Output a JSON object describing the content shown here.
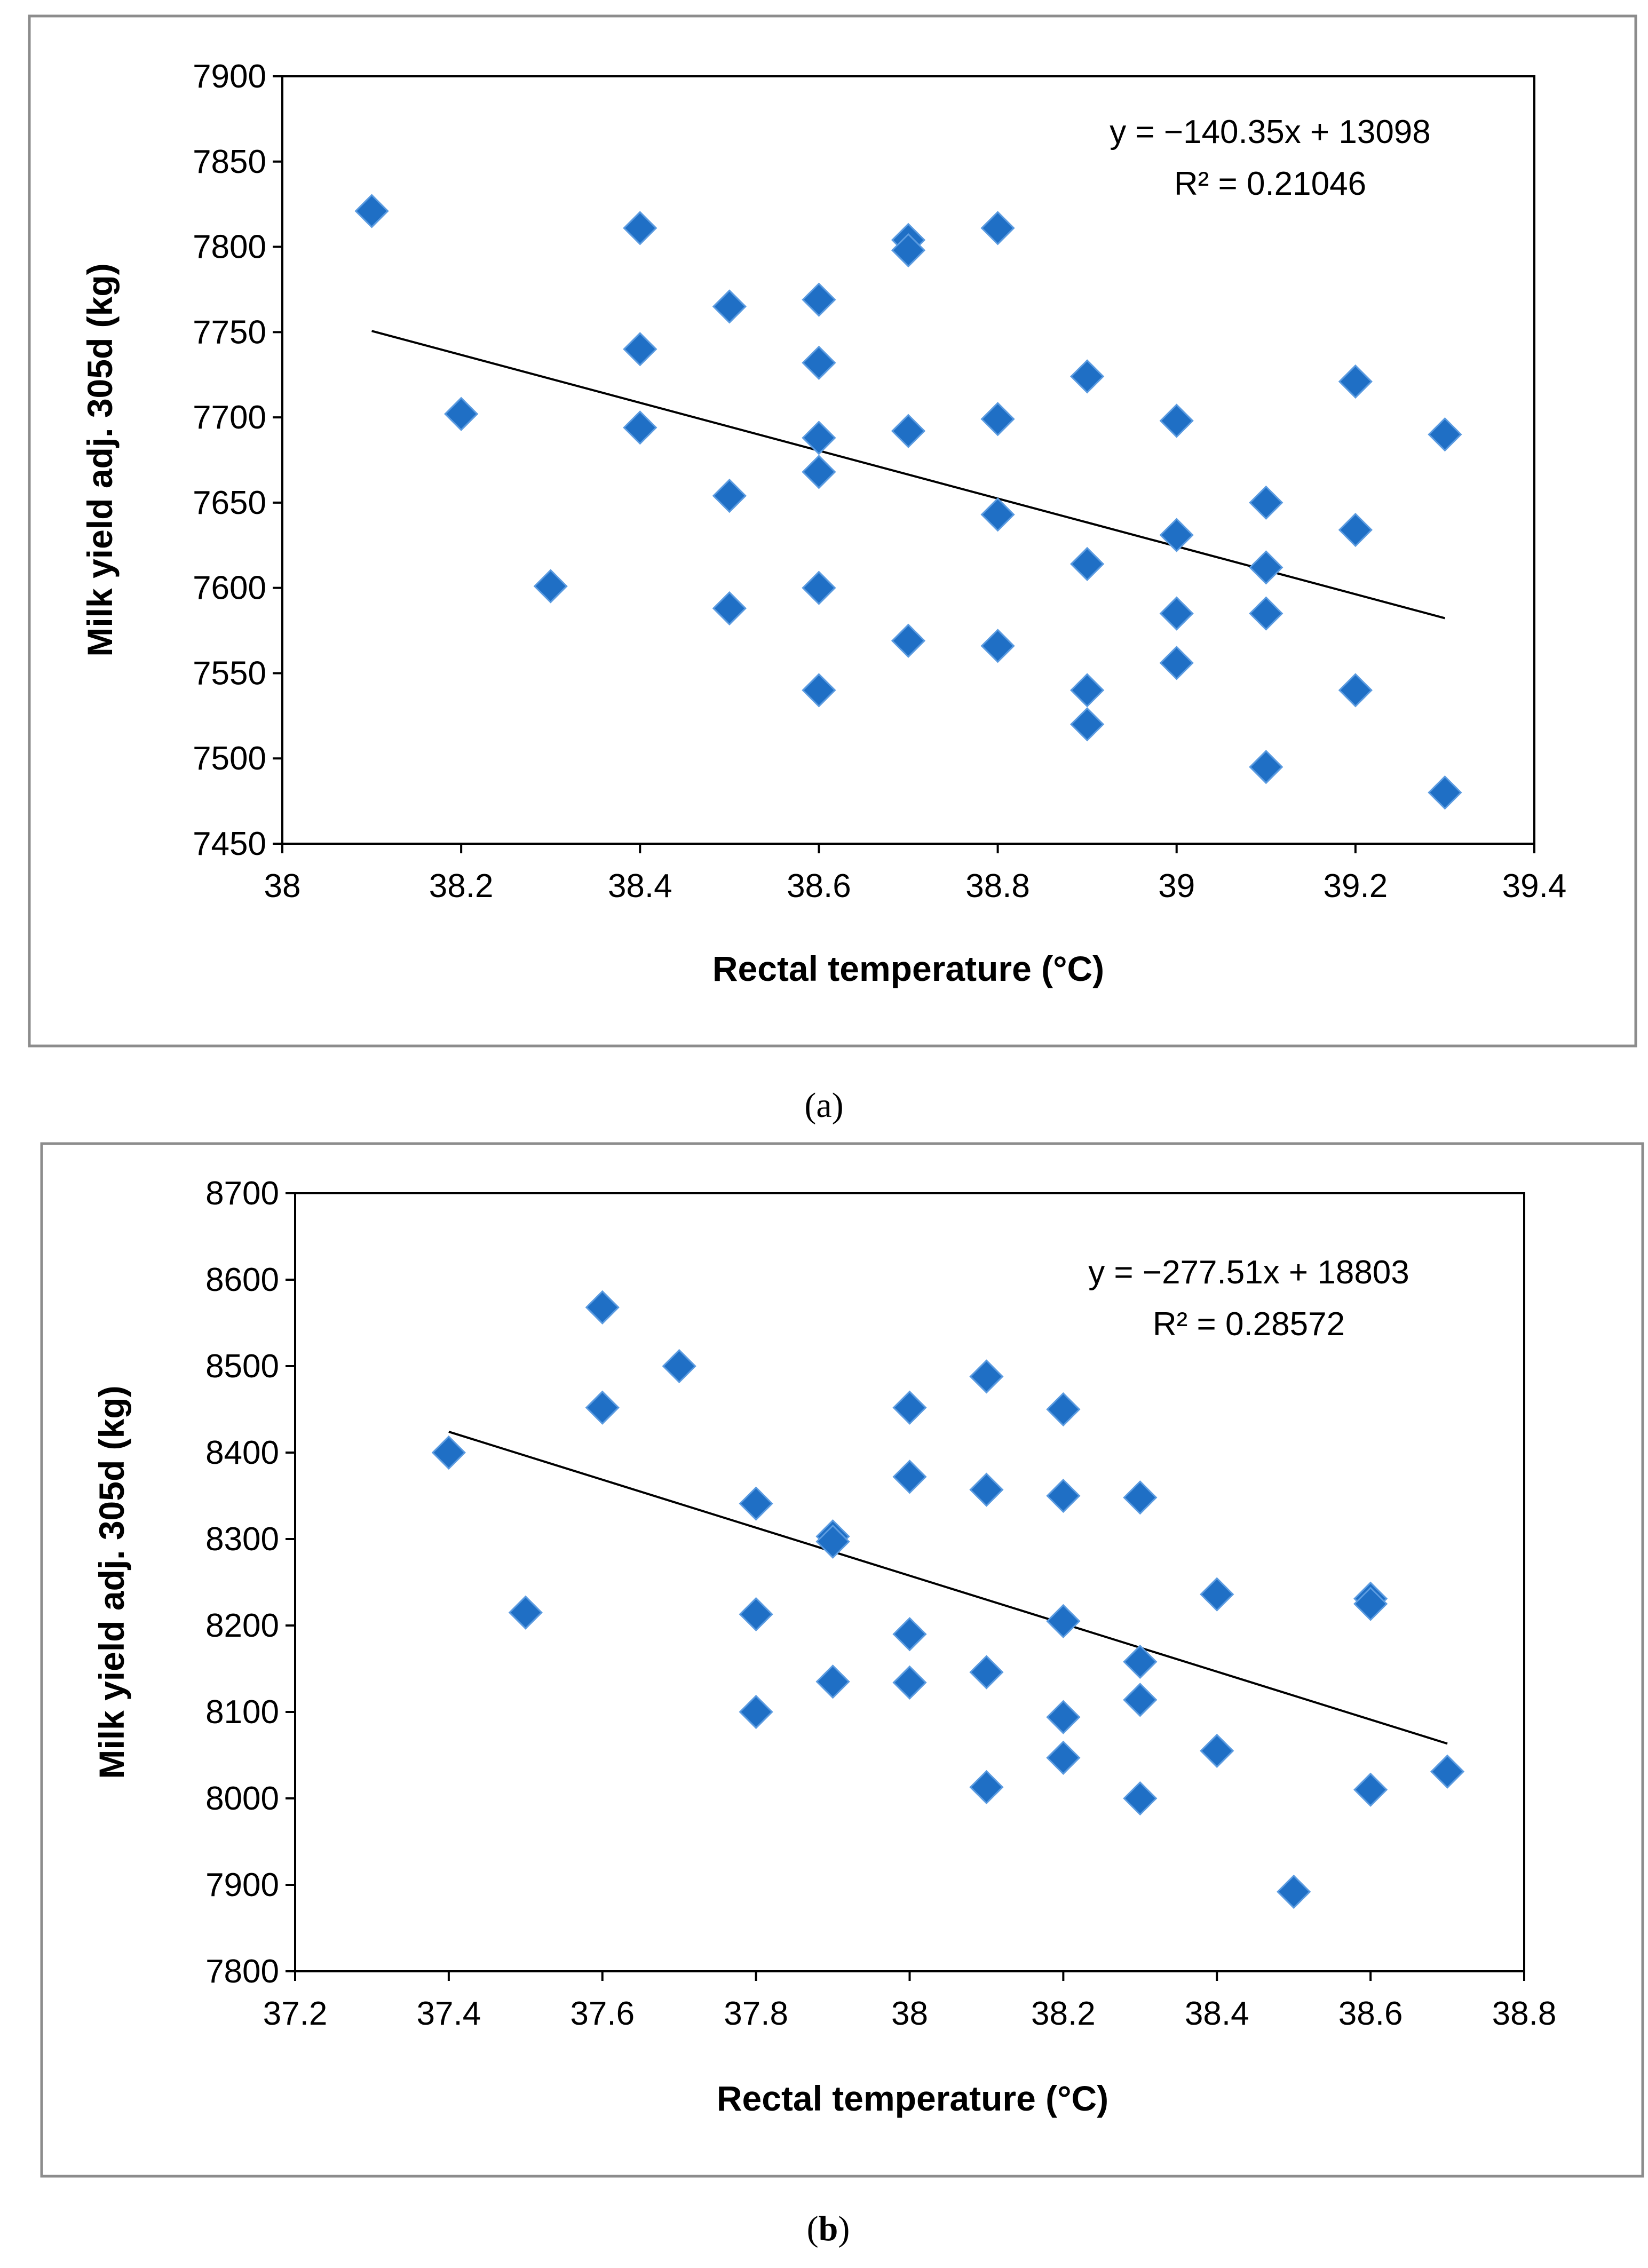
{
  "chart_data": [
    {
      "id": "a",
      "type": "scatter",
      "panel_label": "a",
      "xlabel": "Rectal temperature (°C)",
      "ylabel": "Milk yield adj. 305d (kg)",
      "xlim": [
        38,
        39.4
      ],
      "ylim": [
        7450,
        7900
      ],
      "xticks": [
        "38",
        "38.2",
        "38.4",
        "38.6",
        "38.8",
        "39",
        "39.2",
        "39.4"
      ],
      "yticks": [
        "7450",
        "7500",
        "7550",
        "7600",
        "7650",
        "7700",
        "7750",
        "7800",
        "7850",
        "7900"
      ],
      "equation": "y = −140.35x + 13098",
      "r_squared": "R² = 0.21046",
      "marker_color": "#1f6fc5",
      "trendline": {
        "slope": -140.35,
        "intercept": 13098,
        "x_start": 38.1,
        "x_end": 39.3
      },
      "points": [
        [
          38.1,
          7821
        ],
        [
          38.2,
          7702
        ],
        [
          38.3,
          7601
        ],
        [
          38.4,
          7811
        ],
        [
          38.4,
          7740
        ],
        [
          38.4,
          7694
        ],
        [
          38.5,
          7765
        ],
        [
          38.5,
          7654
        ],
        [
          38.5,
          7588
        ],
        [
          38.6,
          7769
        ],
        [
          38.6,
          7732
        ],
        [
          38.6,
          7688
        ],
        [
          38.6,
          7668
        ],
        [
          38.6,
          7600
        ],
        [
          38.6,
          7540
        ],
        [
          38.7,
          7804
        ],
        [
          38.7,
          7798
        ],
        [
          38.7,
          7692
        ],
        [
          38.7,
          7569
        ],
        [
          38.8,
          7811
        ],
        [
          38.8,
          7699
        ],
        [
          38.8,
          7643
        ],
        [
          38.8,
          7566
        ],
        [
          38.9,
          7724
        ],
        [
          38.9,
          7614
        ],
        [
          38.9,
          7540
        ],
        [
          38.9,
          7520
        ],
        [
          39.0,
          7698
        ],
        [
          39.0,
          7631
        ],
        [
          39.0,
          7585
        ],
        [
          39.0,
          7556
        ],
        [
          39.1,
          7650
        ],
        [
          39.1,
          7612
        ],
        [
          39.1,
          7585
        ],
        [
          39.1,
          7495
        ],
        [
          39.2,
          7721
        ],
        [
          39.2,
          7634
        ],
        [
          39.2,
          7540
        ],
        [
          39.3,
          7690
        ],
        [
          39.3,
          7480
        ]
      ]
    },
    {
      "id": "b",
      "type": "scatter",
      "panel_label": "b",
      "xlabel": "Rectal temperature (°C)",
      "ylabel": "Milk yield adj. 305d (kg)",
      "xlim": [
        37.2,
        38.8
      ],
      "ylim": [
        7800,
        8700
      ],
      "xticks": [
        "37.2",
        "37.4",
        "37.6",
        "37.8",
        "38",
        "38.2",
        "38.4",
        "38.6",
        "38.8"
      ],
      "yticks": [
        "7800",
        "7900",
        "8000",
        "8100",
        "8200",
        "8300",
        "8400",
        "8500",
        "8600",
        "8700"
      ],
      "equation": "y = −277.51x + 18803",
      "r_squared": "R² = 0.28572",
      "marker_color": "#1f6fc5",
      "trendline": {
        "slope": -277.51,
        "intercept": 18803,
        "x_start": 37.4,
        "x_end": 38.7
      },
      "points": [
        [
          37.4,
          8400
        ],
        [
          37.5,
          8215
        ],
        [
          37.6,
          8568
        ],
        [
          37.6,
          8452
        ],
        [
          37.7,
          8500
        ],
        [
          37.8,
          8341
        ],
        [
          37.8,
          8213
        ],
        [
          37.8,
          8100
        ],
        [
          37.9,
          8303
        ],
        [
          37.9,
          8297
        ],
        [
          37.9,
          8135
        ],
        [
          38.0,
          8452
        ],
        [
          38.0,
          8372
        ],
        [
          38.0,
          8190
        ],
        [
          38.0,
          8134
        ],
        [
          38.1,
          8488
        ],
        [
          38.1,
          8357
        ],
        [
          38.1,
          8146
        ],
        [
          38.1,
          8013
        ],
        [
          38.2,
          8450
        ],
        [
          38.2,
          8350
        ],
        [
          38.2,
          8205
        ],
        [
          38.2,
          8094
        ],
        [
          38.2,
          8047
        ],
        [
          38.3,
          8348
        ],
        [
          38.3,
          8158
        ],
        [
          38.3,
          8114
        ],
        [
          38.3,
          8000
        ],
        [
          38.4,
          8236
        ],
        [
          38.4,
          8055
        ],
        [
          38.5,
          7892
        ],
        [
          38.6,
          8231
        ],
        [
          38.6,
          8225
        ],
        [
          38.6,
          8010
        ],
        [
          38.7,
          8031
        ]
      ]
    }
  ]
}
